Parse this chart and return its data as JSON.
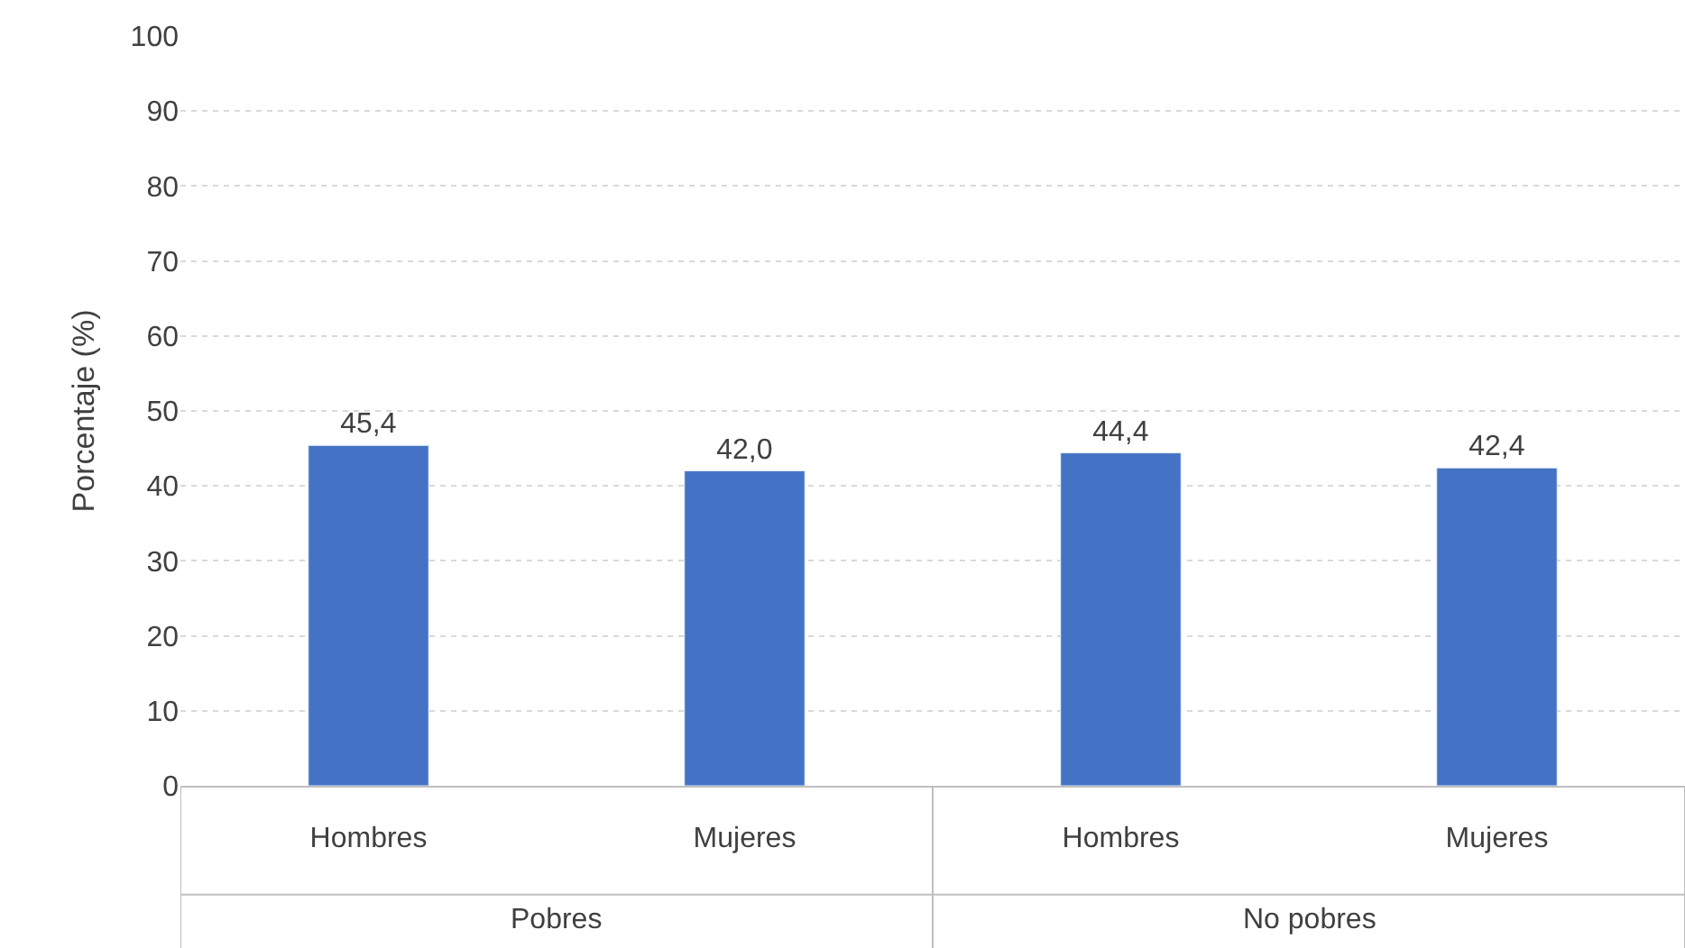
{
  "chart_data": {
    "type": "bar",
    "ylabel": "Porcentaje (%)",
    "categories": [
      "Hombres",
      "Mujeres",
      "Hombres",
      "Mujeres"
    ],
    "values": [
      45.4,
      42.0,
      44.4,
      42.4
    ],
    "value_labels": [
      "45,4",
      "42,0",
      "44,4",
      "42,4"
    ],
    "color": "#4472c4",
    "annotations": [
      "Pobres",
      "No pobres"
    ],
    "ylim": [
      0,
      100
    ],
    "yticks": [
      0,
      10,
      20,
      30,
      40,
      50,
      60,
      70,
      80,
      90,
      100
    ],
    "grid": "y",
    "legend": false
  }
}
